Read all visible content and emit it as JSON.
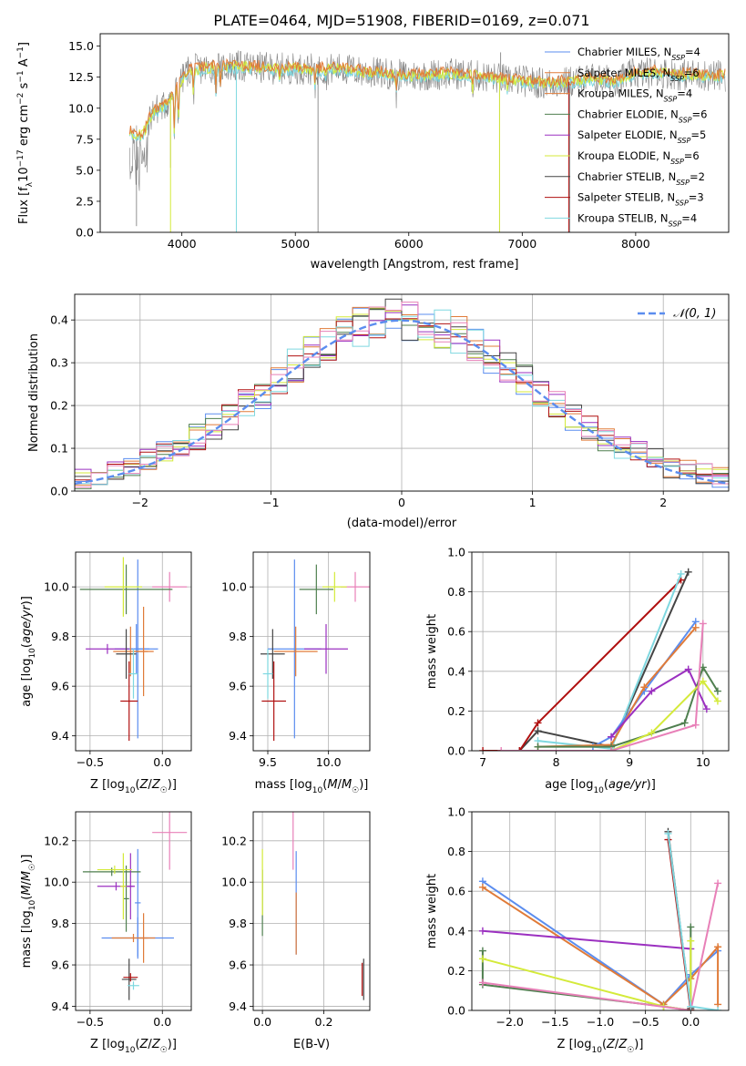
{
  "figure": {
    "title": "PLATE=0464, MJD=51908, FIBERID=0169, z=0.071"
  },
  "chart_data": [
    {
      "id": "spectrum",
      "type": "line",
      "xlabel": "wavelength [Angstrom, rest frame]",
      "ylabel": "Flux [f_λ10^-17 erg cm^-2 s^-1 A^-1]",
      "xlim": [
        3280,
        8820
      ],
      "ylim": [
        0,
        16
      ],
      "xticks": [
        4000,
        5000,
        6000,
        7000,
        8000
      ],
      "yticks": [
        0.0,
        2.5,
        5.0,
        7.5,
        10.0,
        12.5,
        15.0
      ],
      "legend_position": "right",
      "legend": [
        {
          "label": "Chabrier MILES",
          "nssp": "4",
          "color": "#5b8def"
        },
        {
          "label": "Salpeter MILES",
          "nssp": "6",
          "color": "#e07b39"
        },
        {
          "label": "Kroupa MILES",
          "nssp": "4",
          "color": "#e07b39"
        },
        {
          "label": "Chabrier ELODIE",
          "nssp": "6",
          "color": "#4f7f4f"
        },
        {
          "label": "Salpeter ELODIE",
          "nssp": "5",
          "color": "#9b30c0"
        },
        {
          "label": "Kroupa ELODIE",
          "nssp": "6",
          "color": "#d4ea3a"
        },
        {
          "label": "Chabrier STELIB",
          "nssp": "2",
          "color": "#444444"
        },
        {
          "label": "Salpeter STELIB",
          "nssp": "3",
          "color": "#b01010"
        },
        {
          "label": "Kroupa STELIB",
          "nssp": "4",
          "color": "#7fd8e0"
        }
      ],
      "data_color": "#808080",
      "model_colors": [
        "#7fd8e0",
        "#d4ea3a",
        "#e07b39"
      ],
      "continuum": {
        "x": [
          3550,
          3650,
          3750,
          3850,
          3950,
          4050,
          4200,
          4400,
          4600,
          4800,
          5000,
          5200,
          5400,
          5600,
          5800,
          6000,
          6200,
          6400,
          6600,
          6800,
          7000,
          7200,
          7400,
          7600,
          7800,
          8000,
          8200,
          8400,
          8800
        ],
        "y": [
          8.0,
          7.8,
          9.8,
          10.2,
          11.5,
          13.0,
          13.2,
          13.4,
          13.3,
          13.2,
          13.2,
          13.1,
          13.2,
          12.9,
          12.8,
          12.6,
          12.7,
          12.8,
          12.6,
          12.4,
          12.2,
          12.0,
          12.1,
          12.4,
          12.2,
          12.8,
          12.9,
          12.7,
          12.6
        ]
      }
    },
    {
      "id": "residuals",
      "type": "line",
      "xlabel": "(data-model)/error",
      "ylabel": "Normed distribution",
      "xlim": [
        -2.5,
        2.5
      ],
      "ylim": [
        0,
        0.46
      ],
      "xticks": [
        -2,
        -1,
        0,
        1,
        2
      ],
      "yticks": [
        0.0,
        0.1,
        0.2,
        0.3,
        0.4
      ],
      "legend_position": "upper right",
      "legend_label": "N(0,1)",
      "normal_color": "#5b8def",
      "hist_colors": [
        "#5b8def",
        "#e07b39",
        "#4f7f4f",
        "#9b30c0",
        "#d4ea3a",
        "#444444",
        "#b01010",
        "#7fd8e0",
        "#e880b8"
      ]
    },
    {
      "id": "age_vs_Z",
      "type": "scatter",
      "xlabel": "Z [log10(Z/Z☉)]",
      "ylabel": "age  [log10(age/yr)]",
      "xlim": [
        -0.6,
        0.2
      ],
      "ylim": [
        9.34,
        10.14
      ],
      "xticks": [
        -0.5,
        0.0
      ],
      "yticks": [
        9.4,
        9.6,
        9.8,
        10.0
      ],
      "points": [
        {
          "x": 0.05,
          "y": 10.0,
          "xerr": 0.12,
          "yerr": 0.06,
          "color": "#e880b8"
        },
        {
          "x": -0.18,
          "y": 9.75,
          "xerr": 0.15,
          "yerr": 0.1,
          "color": "#5b8def"
        },
        {
          "x": -0.17,
          "y": 9.75,
          "xerr": 0.08,
          "yerr": 0.36,
          "color": "#5b8def"
        },
        {
          "x": -0.22,
          "y": 9.74,
          "xerr": 0.12,
          "yerr": 0.1,
          "color": "#e07b39"
        },
        {
          "x": -0.13,
          "y": 9.74,
          "xerr": 0.07,
          "yerr": 0.18,
          "color": "#e07b39"
        },
        {
          "x": -0.25,
          "y": 9.99,
          "xerr": 0.32,
          "yerr": 0.1,
          "color": "#4f7f4f"
        },
        {
          "x": -0.38,
          "y": 9.75,
          "xerr": 0.15,
          "yerr": 0.02,
          "color": "#9b30c0"
        },
        {
          "x": -0.27,
          "y": 10.0,
          "xerr": 0.13,
          "yerr": 0.12,
          "color": "#d4ea3a"
        },
        {
          "x": -0.25,
          "y": 9.73,
          "xerr": 0.07,
          "yerr": 0.1,
          "color": "#444444"
        },
        {
          "x": -0.23,
          "y": 9.54,
          "xerr": 0.06,
          "yerr": 0.16,
          "color": "#b01010"
        },
        {
          "x": -0.2,
          "y": 9.65,
          "xerr": 0.03,
          "yerr": 0.1,
          "color": "#7fd8e0"
        }
      ]
    },
    {
      "id": "age_vs_mass",
      "type": "scatter",
      "xlabel": "mass [log10(M/M☉)]",
      "ylabel": "",
      "xlim": [
        9.38,
        10.34
      ],
      "ylim": [
        9.34,
        10.14
      ],
      "xticks": [
        9.5,
        10.0
      ],
      "yticks": [
        9.4,
        9.6,
        9.8,
        10.0
      ],
      "points": [
        {
          "x": 10.22,
          "y": 10.0,
          "xerr": 0.12,
          "yerr": 0.06,
          "color": "#e880b8"
        },
        {
          "x": 9.72,
          "y": 9.75,
          "xerr": 0.22,
          "yerr": 0.36,
          "color": "#5b8def"
        },
        {
          "x": 9.73,
          "y": 9.74,
          "xerr": 0.18,
          "yerr": 0.1,
          "color": "#e07b39"
        },
        {
          "x": 9.9,
          "y": 9.99,
          "xerr": 0.14,
          "yerr": 0.1,
          "color": "#4f7f4f"
        },
        {
          "x": 9.98,
          "y": 9.75,
          "xerr": 0.18,
          "yerr": 0.1,
          "color": "#9b30c0"
        },
        {
          "x": 10.05,
          "y": 10.0,
          "xerr": 0.1,
          "yerr": 0.06,
          "color": "#d4ea3a"
        },
        {
          "x": 9.54,
          "y": 9.73,
          "xerr": 0.1,
          "yerr": 0.1,
          "color": "#444444"
        },
        {
          "x": 9.55,
          "y": 9.54,
          "xerr": 0.1,
          "yerr": 0.16,
          "color": "#b01010"
        },
        {
          "x": 9.5,
          "y": 9.65,
          "xerr": 0.04,
          "yerr": 0.1,
          "color": "#7fd8e0"
        }
      ]
    },
    {
      "id": "weight_vs_age",
      "type": "line",
      "xlabel": "age  [log10(age/yr)]",
      "ylabel": "mass weight",
      "xlim": [
        6.85,
        10.35
      ],
      "ylim": [
        0,
        1
      ],
      "xticks": [
        7,
        8,
        9,
        10
      ],
      "yticks": [
        0.0,
        0.2,
        0.4,
        0.6,
        0.8,
        1.0
      ],
      "series": [
        {
          "color": "#444444",
          "x": [
            7.5,
            7.75,
            8.75,
            9.8
          ],
          "y": [
            0.0,
            0.1,
            0.02,
            0.9
          ]
        },
        {
          "color": "#b01010",
          "x": [
            7.0,
            7.5,
            7.75,
            9.7
          ],
          "y": [
            0.0,
            0.0,
            0.14,
            0.86
          ]
        },
        {
          "color": "#7fd8e0",
          "x": [
            7.75,
            8.5,
            8.75,
            9.7
          ],
          "y": [
            0.05,
            0.02,
            0.01,
            0.89
          ]
        },
        {
          "color": "#5b8def",
          "x": [
            8.5,
            8.75,
            9.2,
            9.9
          ],
          "y": [
            0.02,
            0.07,
            0.3,
            0.65
          ]
        },
        {
          "color": "#e07b39",
          "x": [
            7.75,
            8.75,
            9.2,
            9.9
          ],
          "y": [
            0.02,
            0.03,
            0.32,
            0.62
          ]
        },
        {
          "color": "#9b30c0",
          "x": [
            8.75,
            9.3,
            9.8,
            10.05
          ],
          "y": [
            0.07,
            0.3,
            0.41,
            0.21
          ]
        },
        {
          "color": "#4f7f4f",
          "x": [
            7.75,
            8.75,
            9.75,
            10.0,
            10.2
          ],
          "y": [
            0.02,
            0.02,
            0.14,
            0.42,
            0.3
          ]
        },
        {
          "color": "#d4ea3a",
          "x": [
            8.75,
            9.3,
            10.0,
            10.2
          ],
          "y": [
            0.0,
            0.09,
            0.35,
            0.25
          ]
        },
        {
          "color": "#e880b8",
          "x": [
            7.25,
            8.75,
            9.9,
            10.0
          ],
          "y": [
            0.0,
            0.0,
            0.13,
            0.64
          ]
        }
      ]
    },
    {
      "id": "mass_vs_Z",
      "type": "scatter",
      "xlabel": "Z [log10(Z/Z☉)]",
      "ylabel": "mass [log10(M/M☉)]",
      "xlim": [
        -0.6,
        0.2
      ],
      "ylim": [
        9.38,
        10.34
      ],
      "xticks": [
        -0.5,
        0.0
      ],
      "yticks": [
        9.4,
        9.6,
        9.8,
        10.0,
        10.2
      ],
      "points": [
        {
          "x": 0.05,
          "y": 10.24,
          "xerr": 0.12,
          "yerr": 0.18,
          "color": "#e880b8"
        },
        {
          "x": -0.17,
          "y": 9.73,
          "xerr": 0.25,
          "yerr": 0.1,
          "color": "#5b8def"
        },
        {
          "x": -0.17,
          "y": 9.9,
          "xerr": 0.02,
          "yerr": 0.26,
          "color": "#5b8def"
        },
        {
          "x": -0.2,
          "y": 9.73,
          "xerr": 0.15,
          "yerr": 0.02,
          "color": "#e07b39"
        },
        {
          "x": -0.13,
          "y": 9.73,
          "xerr": 0.03,
          "yerr": 0.12,
          "color": "#e07b39"
        },
        {
          "x": -0.35,
          "y": 10.05,
          "xerr": 0.2,
          "yerr": 0.02,
          "color": "#4f7f4f"
        },
        {
          "x": -0.25,
          "y": 9.92,
          "xerr": 0.02,
          "yerr": 0.16,
          "color": "#4f7f4f"
        },
        {
          "x": -0.32,
          "y": 9.98,
          "xerr": 0.13,
          "yerr": 0.02,
          "color": "#9b30c0"
        },
        {
          "x": -0.22,
          "y": 9.98,
          "xerr": 0.02,
          "yerr": 0.16,
          "color": "#9b30c0"
        },
        {
          "x": -0.33,
          "y": 10.06,
          "xerr": 0.12,
          "yerr": 0.02,
          "color": "#d4ea3a"
        },
        {
          "x": -0.27,
          "y": 9.98,
          "xerr": 0.02,
          "yerr": 0.16,
          "color": "#d4ea3a"
        },
        {
          "x": -0.23,
          "y": 9.53,
          "xerr": 0.05,
          "yerr": 0.1,
          "color": "#444444"
        },
        {
          "x": -0.22,
          "y": 9.54,
          "xerr": 0.05,
          "yerr": 0.02,
          "color": "#b01010"
        },
        {
          "x": -0.2,
          "y": 9.5,
          "xerr": 0.04,
          "yerr": 0.02,
          "color": "#7fd8e0"
        }
      ]
    },
    {
      "id": "mass_vs_ebv",
      "type": "scatter",
      "xlabel": "E(B-V)",
      "ylabel": "",
      "xlim": [
        -0.03,
        0.35
      ],
      "ylim": [
        9.38,
        10.34
      ],
      "xticks": [
        0.0,
        0.2
      ],
      "yticks": [
        9.4,
        9.6,
        9.8,
        10.0,
        10.2
      ],
      "points": [
        {
          "x": 0.1,
          "y": 10.2,
          "yerr": 0.14,
          "color": "#e880b8"
        },
        {
          "x": 0.11,
          "y": 9.9,
          "yerr": 0.25,
          "color": "#5b8def"
        },
        {
          "x": 0.11,
          "y": 9.8,
          "yerr": 0.15,
          "color": "#e07b39"
        },
        {
          "x": 0.0,
          "y": 9.9,
          "yerr": 0.16,
          "color": "#4f7f4f"
        },
        {
          "x": 0.0,
          "y": 10.0,
          "yerr": 0.16,
          "color": "#d4ea3a"
        },
        {
          "x": 0.33,
          "y": 9.53,
          "yerr": 0.1,
          "color": "#444444"
        },
        {
          "x": 0.325,
          "y": 9.53,
          "yerr": 0.08,
          "color": "#b01010"
        }
      ]
    },
    {
      "id": "weight_vs_Z",
      "type": "line",
      "xlabel": "Z [log10(Z/Z☉)]",
      "ylabel": "mass weight",
      "xlim": [
        -2.42,
        0.42
      ],
      "ylim": [
        0,
        1
      ],
      "xticks": [
        -2.0,
        -1.5,
        -1.0,
        -0.5,
        0.0
      ],
      "yticks": [
        0.0,
        0.2,
        0.4,
        0.6,
        0.8,
        1.0
      ],
      "series": [
        {
          "color": "#5b8def",
          "x": [
            -2.3,
            -0.3,
            0.0,
            0.3
          ],
          "y": [
            0.65,
            0.03,
            0.18,
            0.3
          ]
        },
        {
          "color": "#e07b39",
          "x": [
            -2.3,
            -0.3,
            0.0,
            0.3,
            0.3
          ],
          "y": [
            0.62,
            0.03,
            0.16,
            0.32,
            0.03
          ]
        },
        {
          "color": "#9b30c0",
          "x": [
            -2.3,
            0.0
          ],
          "y": [
            0.4,
            0.31
          ]
        },
        {
          "color": "#4f7f4f",
          "x": [
            -2.3,
            -2.3,
            -0.3,
            0.0,
            0.0
          ],
          "y": [
            0.3,
            0.13,
            0.02,
            0.0,
            0.42
          ]
        },
        {
          "color": "#d4ea3a",
          "x": [
            -2.3,
            -0.3,
            0.0,
            0.0
          ],
          "y": [
            0.26,
            0.02,
            0.0,
            0.35
          ]
        },
        {
          "color": "#e880b8",
          "x": [
            -2.3,
            0.0,
            0.3
          ],
          "y": [
            0.14,
            0.0,
            0.64
          ]
        },
        {
          "color": "#444444",
          "x": [
            -0.25,
            0.0
          ],
          "y": [
            0.9,
            0.01
          ]
        },
        {
          "color": "#b01010",
          "x": [
            -0.25,
            0.0
          ],
          "y": [
            0.86,
            0.0
          ]
        },
        {
          "color": "#7fd8e0",
          "x": [
            -0.25,
            0.0,
            0.3
          ],
          "y": [
            0.89,
            0.02,
            0.0
          ]
        }
      ]
    }
  ]
}
